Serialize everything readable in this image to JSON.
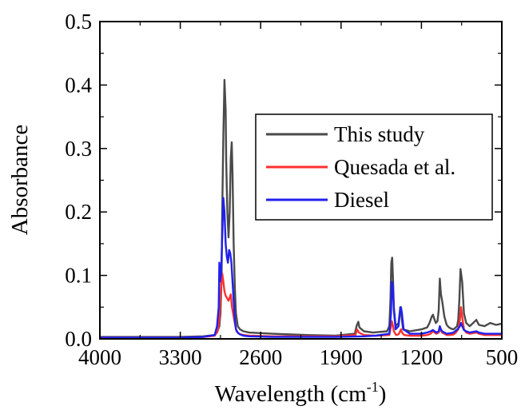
{
  "chart_data": {
    "type": "line",
    "title": "",
    "xlabel": "Wavelength (cm",
    "xlabel_sup": "-1",
    "xlabel_close": ")",
    "ylabel": "Absorbance",
    "xlim": [
      4000,
      500
    ],
    "ylim": [
      0,
      0.5
    ],
    "x_reversed": true,
    "x_ticks": [
      4000,
      3300,
      2600,
      1900,
      1200,
      500
    ],
    "y_ticks": [
      0.0,
      0.1,
      0.2,
      0.3,
      0.4,
      0.5
    ],
    "x_tick_labels": [
      "4000",
      "3300",
      "2600",
      "1900",
      "1200",
      "500"
    ],
    "y_tick_labels": [
      "0.0",
      "0.1",
      "0.2",
      "0.3",
      "0.4",
      "0.5"
    ],
    "grid": false,
    "legend_position": "top-right",
    "legend": [
      "This study",
      "Quesada et al.",
      "Diesel"
    ],
    "series": [
      {
        "name": "This study",
        "color": "#4a4a4a",
        "x": [
          4000,
          3300,
          3100,
          3000,
          2980,
          2960,
          2950,
          2940,
          2935,
          2925,
          2915,
          2905,
          2900,
          2890,
          2880,
          2870,
          2860,
          2852,
          2845,
          2835,
          2825,
          2815,
          2800,
          2780,
          2750,
          2700,
          2500,
          2200,
          1950,
          1780,
          1765,
          1750,
          1740,
          1700,
          1620,
          1500,
          1480,
          1470,
          1462,
          1455,
          1448,
          1440,
          1425,
          1400,
          1390,
          1385,
          1378,
          1370,
          1360,
          1300,
          1200,
          1150,
          1130,
          1110,
          1100,
          1085,
          1075,
          1060,
          1050,
          1040,
          1030,
          1020,
          1000,
          980,
          960,
          940,
          920,
          900,
          890,
          880,
          870,
          860,
          845,
          830,
          810,
          780,
          750,
          722,
          700,
          650,
          600,
          550,
          500
        ],
        "y": [
          0.003,
          0.003,
          0.004,
          0.006,
          0.01,
          0.02,
          0.04,
          0.1,
          0.2,
          0.32,
          0.408,
          0.36,
          0.28,
          0.2,
          0.16,
          0.2,
          0.285,
          0.31,
          0.26,
          0.15,
          0.08,
          0.04,
          0.02,
          0.015,
          0.012,
          0.01,
          0.008,
          0.006,
          0.005,
          0.008,
          0.02,
          0.027,
          0.018,
          0.012,
          0.01,
          0.012,
          0.02,
          0.06,
          0.12,
          0.128,
          0.095,
          0.05,
          0.02,
          0.025,
          0.04,
          0.05,
          0.047,
          0.03,
          0.015,
          0.012,
          0.015,
          0.018,
          0.025,
          0.035,
          0.038,
          0.03,
          0.025,
          0.028,
          0.045,
          0.095,
          0.07,
          0.06,
          0.035,
          0.022,
          0.018,
          0.016,
          0.015,
          0.018,
          0.02,
          0.03,
          0.06,
          0.11,
          0.09,
          0.04,
          0.025,
          0.02,
          0.025,
          0.03,
          0.022,
          0.02,
          0.025,
          0.022,
          0.024
        ]
      },
      {
        "name": "Quesada et al.",
        "color": "#ff3030",
        "x": [
          4000,
          3300,
          3100,
          3000,
          2975,
          2960,
          2950,
          2935,
          2925,
          2915,
          2905,
          2895,
          2880,
          2870,
          2860,
          2850,
          2840,
          2830,
          2820,
          2810,
          2790,
          2750,
          2700,
          2500,
          2200,
          1950,
          1775,
          1760,
          1745,
          1700,
          1600,
          1480,
          1465,
          1458,
          1450,
          1440,
          1420,
          1400,
          1385,
          1378,
          1370,
          1350,
          1300,
          1200,
          1150,
          1120,
          1100,
          1085,
          1070,
          1050,
          1040,
          1030,
          1020,
          1000,
          980,
          950,
          920,
          900,
          880,
          865,
          855,
          845,
          830,
          810,
          780,
          722,
          700,
          650,
          600,
          550,
          500
        ],
        "y": [
          0.002,
          0.002,
          0.003,
          0.005,
          0.012,
          0.03,
          0.07,
          0.103,
          0.09,
          0.075,
          0.068,
          0.065,
          0.06,
          0.065,
          0.07,
          0.05,
          0.04,
          0.03,
          0.02,
          0.012,
          0.008,
          0.006,
          0.005,
          0.004,
          0.004,
          0.004,
          0.006,
          0.015,
          0.01,
          0.006,
          0.005,
          0.006,
          0.02,
          0.028,
          0.022,
          0.012,
          0.006,
          0.007,
          0.012,
          0.015,
          0.01,
          0.006,
          0.005,
          0.005,
          0.006,
          0.008,
          0.012,
          0.01,
          0.008,
          0.01,
          0.015,
          0.013,
          0.01,
          0.008,
          0.006,
          0.006,
          0.007,
          0.01,
          0.015,
          0.03,
          0.05,
          0.035,
          0.015,
          0.01,
          0.008,
          0.01,
          0.008,
          0.006,
          0.006,
          0.006,
          0.006
        ]
      },
      {
        "name": "Diesel",
        "color": "#2020ee",
        "x": [
          4000,
          3300,
          3100,
          3000,
          2980,
          2965,
          2960,
          2955,
          2945,
          2935,
          2925,
          2915,
          2905,
          2895,
          2885,
          2875,
          2865,
          2855,
          2845,
          2835,
          2825,
          2815,
          2800,
          2780,
          2750,
          2700,
          2500,
          2200,
          1950,
          1700,
          1600,
          1480,
          1465,
          1458,
          1450,
          1440,
          1425,
          1400,
          1388,
          1378,
          1370,
          1355,
          1300,
          1200,
          1150,
          1120,
          1100,
          1085,
          1070,
          1050,
          1040,
          1030,
          1020,
          1000,
          980,
          950,
          920,
          900,
          880,
          865,
          855,
          845,
          830,
          810,
          780,
          722,
          700,
          650,
          600,
          550,
          500
        ],
        "y": [
          0.002,
          0.002,
          0.003,
          0.006,
          0.02,
          0.05,
          0.12,
          0.09,
          0.1,
          0.16,
          0.222,
          0.2,
          0.15,
          0.13,
          0.12,
          0.14,
          0.135,
          0.12,
          0.09,
          0.06,
          0.03,
          0.015,
          0.01,
          0.007,
          0.005,
          0.004,
          0.003,
          0.003,
          0.003,
          0.004,
          0.005,
          0.008,
          0.04,
          0.09,
          0.085,
          0.045,
          0.015,
          0.02,
          0.04,
          0.05,
          0.04,
          0.015,
          0.008,
          0.008,
          0.01,
          0.012,
          0.014,
          0.012,
          0.01,
          0.012,
          0.02,
          0.015,
          0.012,
          0.01,
          0.008,
          0.009,
          0.01,
          0.013,
          0.016,
          0.02,
          0.025,
          0.02,
          0.014,
          0.012,
          0.01,
          0.012,
          0.01,
          0.008,
          0.008,
          0.008,
          0.008
        ]
      }
    ]
  }
}
